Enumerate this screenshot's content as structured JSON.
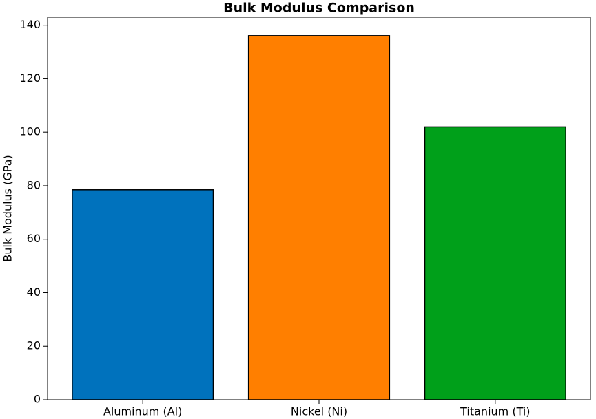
{
  "chart_data": {
    "type": "bar",
    "title": "Bulk Modulus Comparison",
    "y_label": "Bulk Modulus (GPa)",
    "categories": [
      "Aluminum (Al)",
      "Nickel (Ni)",
      "Titanium (Ti)"
    ],
    "values": [
      78.5,
      136.1,
      102
    ],
    "colors": [
      "#0072bd",
      "#ff7f00",
      "#00a01a"
    ],
    "ylim": [
      0,
      143
    ],
    "yticks": [
      0,
      20,
      40,
      60,
      80,
      100,
      120,
      140
    ],
    "grid": false
  }
}
